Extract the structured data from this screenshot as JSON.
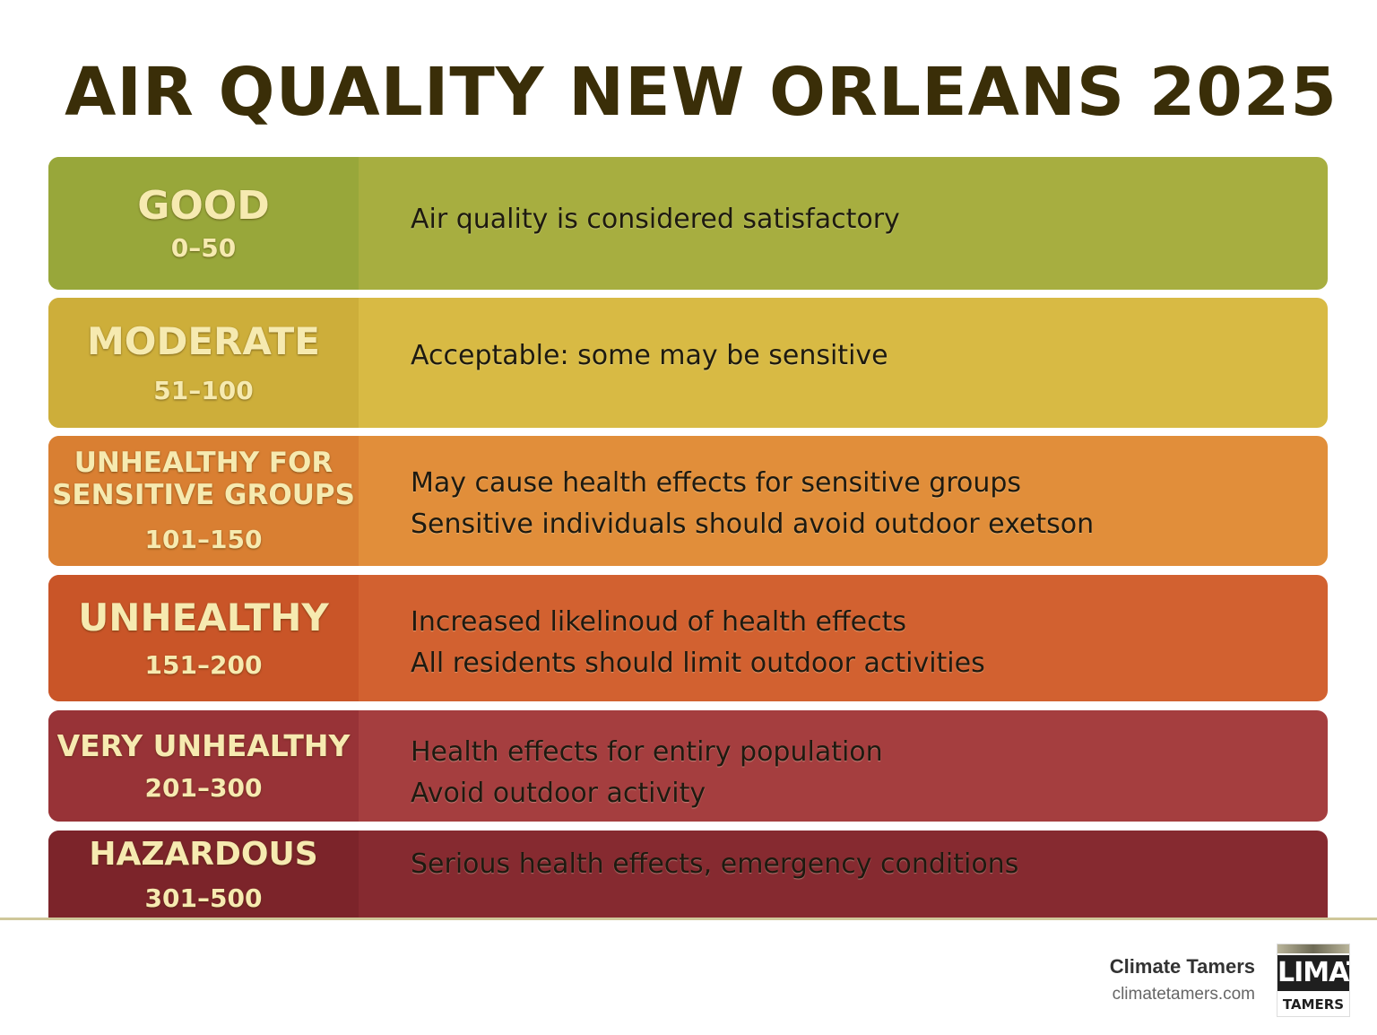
{
  "title": "AIR QUALITY NEW ORLEANS 2025",
  "categories": [
    {
      "name": "GOOD",
      "range": "0–50",
      "color": "#a7ae40",
      "lines": [
        "Air quality is considered satisfactory"
      ]
    },
    {
      "name": "MODERATE",
      "range": "51–100",
      "color": "#d8ba44",
      "lines": [
        "Acceptable: some may be sensitive"
      ]
    },
    {
      "name_lines": [
        "UNHEALTHY FOR",
        "SENSITIVE GROUPS"
      ],
      "range": "101–150",
      "color": "#e18e3a",
      "lines": [
        "May cause health effects for sensitive groups",
        "Sensitive individuals should avoid outdoor exetson"
      ]
    },
    {
      "name": "UNHEALTHY",
      "range": "151–200",
      "color": "#d26130",
      "lines": [
        "Increased likelinoud of health effects",
        "All residents should limit outdoor activities"
      ]
    },
    {
      "name": "VERY UNHEALTHY",
      "range": "201–300",
      "color": "#a53e3f",
      "lines": [
        "Health effects for entiry population",
        "Avoid outdoor activity"
      ]
    },
    {
      "name": "HAZARDOUS",
      "range": "301–500",
      "color": "#862a30",
      "lines": [
        "Serious health effects, emergency conditions"
      ]
    }
  ],
  "footer": {
    "brand_name": "Climate Tamers",
    "brand_url": "climatetamers.com",
    "logo_text_top": "LIMAT",
    "logo_text_bottom": "TAMERS"
  }
}
